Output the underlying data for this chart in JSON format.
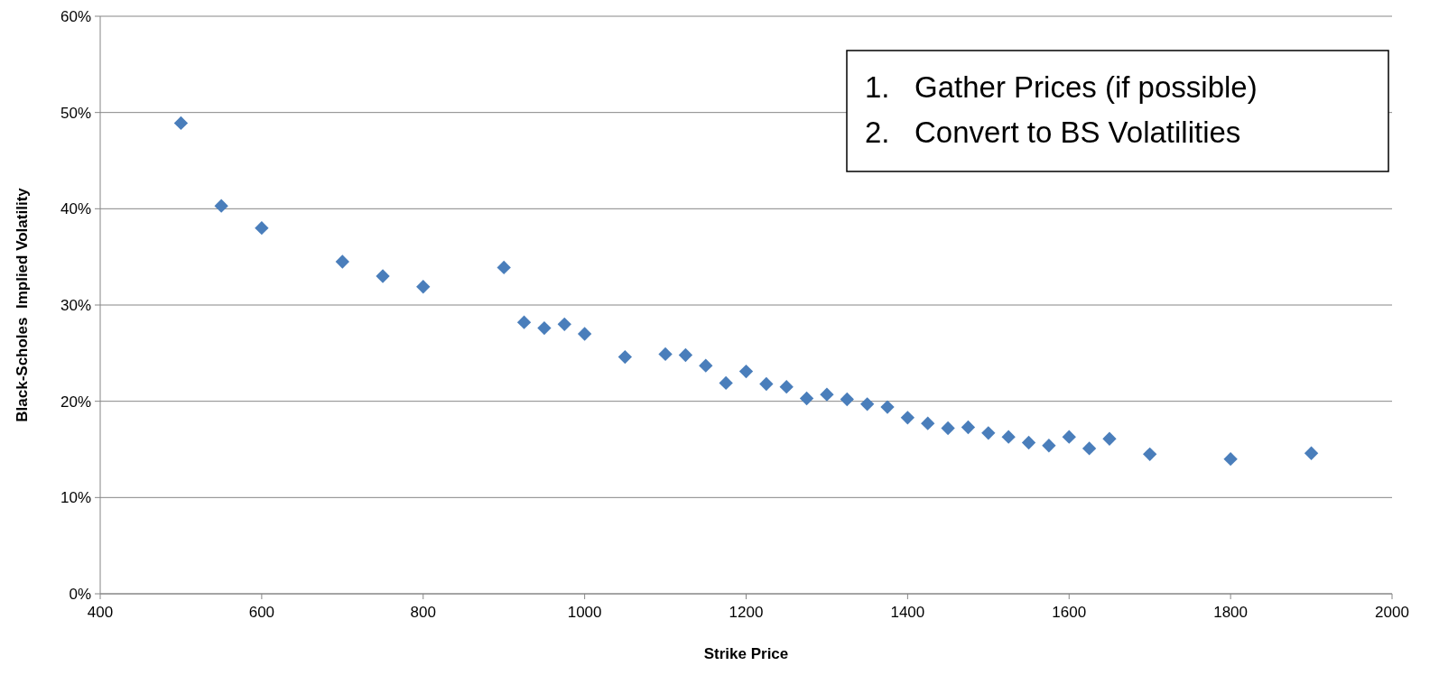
{
  "chart_data": {
    "type": "scatter",
    "xlabel": "Strike Price",
    "ylabel": "Black-Scholes  Implied Volatility",
    "annotations": [
      "1.   Gather Prices (if possible)",
      "2.   Convert to BS Volatilities"
    ],
    "series": [
      {
        "color": "#4a7ebb",
        "x": [
          500,
          550,
          600,
          700,
          750,
          800,
          900,
          925,
          950,
          975,
          1000,
          1050,
          1100,
          1125,
          1150,
          1175,
          1200,
          1225,
          1250,
          1275,
          1300,
          1325,
          1350,
          1375,
          1400,
          1425,
          1450,
          1475,
          1500,
          1525,
          1550,
          1575,
          1600,
          1625,
          1650,
          1700,
          1800,
          1900
        ],
        "values": [
          48.9,
          40.3,
          38.0,
          34.5,
          33.0,
          31.9,
          33.9,
          28.2,
          27.6,
          28.0,
          27.0,
          24.6,
          24.9,
          24.8,
          23.7,
          21.9,
          23.1,
          21.8,
          21.5,
          20.3,
          20.7,
          20.2,
          19.7,
          19.4,
          18.3,
          17.7,
          17.2,
          17.3,
          16.7,
          16.3,
          15.7,
          15.4,
          16.3,
          15.1,
          16.1,
          14.5,
          14.0,
          14.6
        ]
      }
    ],
    "xlim": [
      400,
      2000
    ],
    "xticks": [
      400,
      600,
      800,
      1000,
      1200,
      1400,
      1600,
      1800,
      2000
    ],
    "ylim": [
      0,
      60
    ],
    "yticks": [
      {
        "value": 0,
        "label": "0%"
      },
      {
        "value": 10,
        "label": "10%"
      },
      {
        "value": 20,
        "label": "20%"
      },
      {
        "value": 30,
        "label": "30%"
      },
      {
        "value": 40,
        "label": "40%"
      },
      {
        "value": 50,
        "label": "50%"
      },
      {
        "value": 60,
        "label": "60%"
      }
    ],
    "grid": "y",
    "marker": "diamond"
  }
}
